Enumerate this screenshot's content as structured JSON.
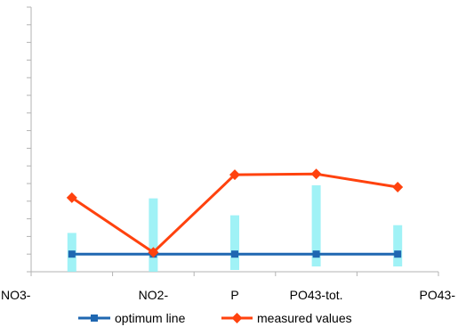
{
  "chart_data": {
    "type": "line",
    "title": "",
    "xlabel": "",
    "ylabel": "",
    "categories": [
      "NO3-",
      "NO2-",
      "P",
      "PO43-tot.",
      "PO43-"
    ],
    "ylim": [
      -0.5,
      7.0
    ],
    "y_tick_step": 0.5,
    "y_tick_labels_visible": false,
    "grid": false,
    "legend_position": "bottom",
    "series": [
      {
        "name": "optimum line",
        "marker": "square",
        "color": "#1f67b1",
        "values": [
          0,
          0,
          0,
          0,
          0
        ]
      },
      {
        "name": "measured values",
        "marker": "diamond",
        "color": "#ff420e",
        "values": [
          1.6,
          0.05,
          2.25,
          2.27,
          1.9
        ]
      }
    ],
    "ranges": {
      "color": "#8ff0f4",
      "low": [
        -0.5,
        -0.5,
        -0.45,
        -0.35,
        -0.35
      ],
      "high": [
        0.6,
        1.58,
        1.1,
        1.95,
        0.82
      ]
    }
  }
}
